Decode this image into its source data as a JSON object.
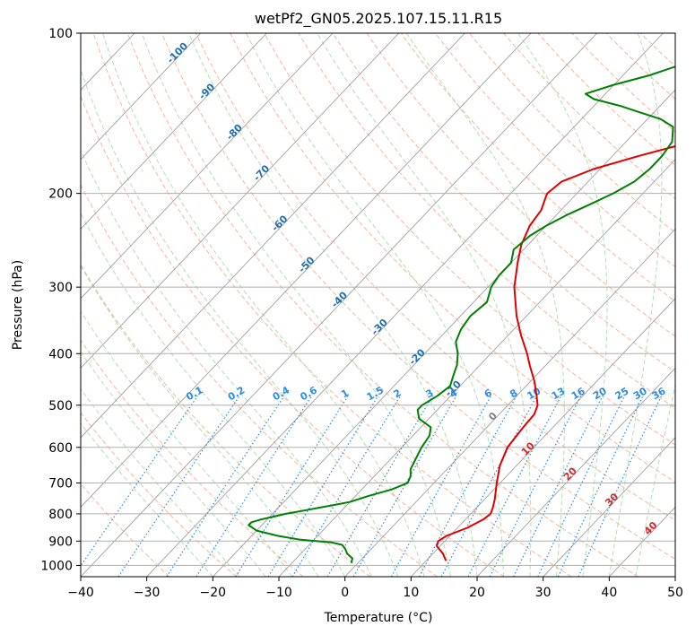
{
  "chart_data": {
    "type": "line",
    "title": "wetPf2_GN05.2025.107.15.11.R15",
    "xlabel": "Temperature (°C)",
    "ylabel": "Pressure (hPa)",
    "xlim": [
      -40,
      50
    ],
    "ylim": [
      1050,
      100
    ],
    "y_scale": "log",
    "grid": true,
    "x_ticks": [
      -40,
      -30,
      -20,
      -10,
      0,
      10,
      20,
      30,
      40,
      50
    ],
    "y_ticks": [
      100,
      200,
      300,
      400,
      500,
      600,
      700,
      800,
      900,
      1000
    ],
    "isotherm_labels": [
      "-100",
      "-90",
      "-80",
      "-70",
      "-60",
      "-50",
      "-40",
      "-30",
      "-20",
      "-10"
    ],
    "mixing_ratio_labels": [
      "0.1",
      "0.2",
      "0.4",
      "0.6",
      "1",
      "1.5",
      "2",
      "3",
      "4",
      "6",
      "8",
      "10",
      "13",
      "16",
      "20",
      "25",
      "30",
      "36"
    ],
    "moist_adiabat_labels": [
      "0",
      "10",
      "20",
      "30",
      "40"
    ],
    "colors": {
      "temperature": "#e00000",
      "dewpoint": "#008000",
      "isotherm": "#a0a0a0",
      "dry_adiabat": "#f4a582",
      "moist_adiabat": "#a6d8a6",
      "mixing_ratio": "#2b8ce6",
      "isotherm_label": "#1f6fb0",
      "moist_label_red": "#d62728",
      "moist_label_zero": "#808080"
    },
    "series": [
      {
        "key": "temperature",
        "p": [
          980,
          950,
          920,
          900,
          880,
          850,
          820,
          800,
          780,
          750,
          700,
          650,
          600,
          550,
          520,
          500,
          480,
          450,
          420,
          400,
          370,
          340,
          300,
          270,
          250,
          230,
          215,
          205,
          200,
          190,
          180,
          170,
          160,
          150,
          140,
          130,
          120,
          110,
          100
        ],
        "t": [
          13,
          11.5,
          9.5,
          9,
          9.5,
          11.5,
          12.7,
          13,
          12.5,
          11.5,
          9.5,
          7.5,
          6,
          5.5,
          5.3,
          4.5,
          3,
          0.5,
          -2.5,
          -4.5,
          -8,
          -11.5,
          -16,
          -19,
          -21,
          -22.5,
          -23,
          -24,
          -24.5,
          -24,
          -21,
          -16,
          -10,
          -4,
          1,
          4.5,
          5.5,
          6,
          8
        ]
      },
      {
        "key": "dewpoint",
        "p": [
          990,
          970,
          950,
          930,
          915,
          905,
          895,
          880,
          860,
          840,
          830,
          820,
          810,
          800,
          790,
          780,
          760,
          740,
          720,
          700,
          680,
          660,
          640,
          620,
          600,
          570,
          550,
          530,
          510,
          500,
          480,
          460,
          440,
          420,
          400,
          380,
          360,
          340,
          320,
          300,
          285,
          270,
          255,
          240,
          230,
          220,
          210,
          200,
          190,
          180,
          170,
          160,
          150,
          145,
          140,
          137,
          133,
          130,
          125,
          120,
          115,
          110,
          105,
          100
        ],
        "t": [
          -1,
          -1.5,
          -3,
          -4,
          -5,
          -7,
          -12,
          -16,
          -20,
          -22,
          -22,
          -21,
          -19.5,
          -18,
          -16,
          -14,
          -10,
          -8,
          -5.5,
          -4,
          -4.5,
          -5.5,
          -6,
          -6.5,
          -7,
          -7.5,
          -8.5,
          -11.5,
          -13,
          -13,
          -12,
          -11.5,
          -12.5,
          -13.5,
          -15,
          -17,
          -18,
          -18.5,
          -18,
          -19.5,
          -20,
          -20,
          -21.5,
          -21,
          -20,
          -18.5,
          -16.5,
          -14.5,
          -13,
          -12.5,
          -12.5,
          -13,
          -15,
          -18,
          -23,
          -26,
          -31,
          -33,
          -30,
          -26,
          -23,
          -22,
          -21,
          -20
        ]
      }
    ]
  }
}
